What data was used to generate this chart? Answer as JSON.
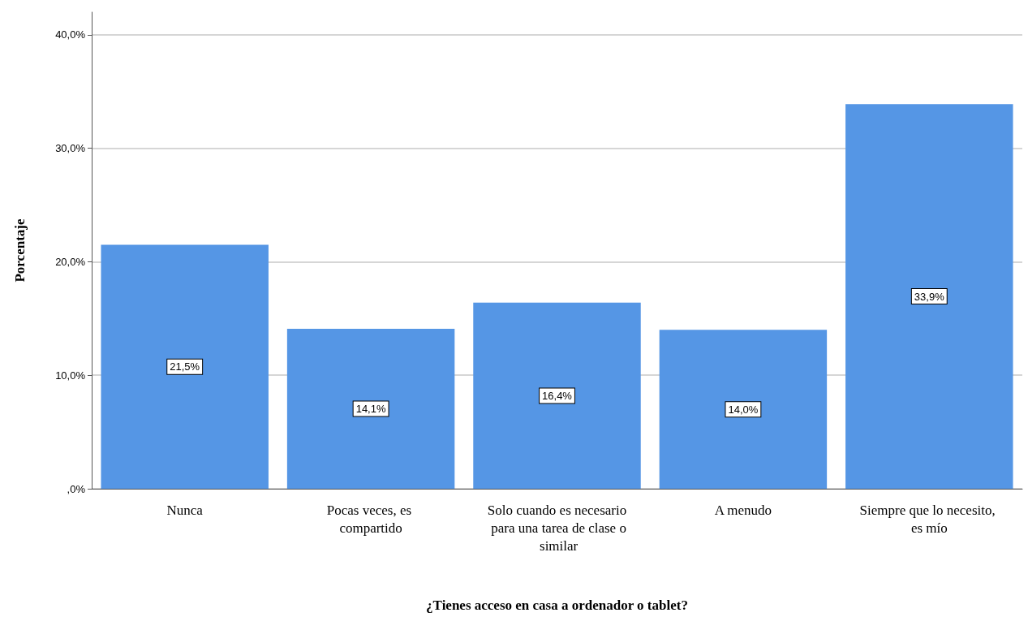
{
  "chart_data": {
    "type": "bar",
    "xlabel": "¿Tienes acceso en casa a ordenador o tablet?",
    "ylabel": "Porcentaje",
    "categories": [
      "Nunca",
      "Pocas veces, es compartido",
      "Solo cuando es necesario para una tarea de clase o similar",
      "A menudo",
      "Siempre que lo necesito, es mío"
    ],
    "values": [
      21.5,
      14.1,
      16.4,
      14.0,
      33.9
    ],
    "value_labels": [
      "21,5%",
      "14,1%",
      "16,4%",
      "14,0%",
      "33,9%"
    ],
    "color": "#5596e5",
    "ylim": [
      0,
      42
    ],
    "yticks": [
      {
        "value": 0,
        "label": ",0%"
      },
      {
        "value": 10,
        "label": "10,0%"
      },
      {
        "value": 20,
        "label": "20,0%"
      },
      {
        "value": 30,
        "label": "30,0%"
      },
      {
        "value": 40,
        "label": "40,0%"
      }
    ],
    "grid": "y"
  }
}
